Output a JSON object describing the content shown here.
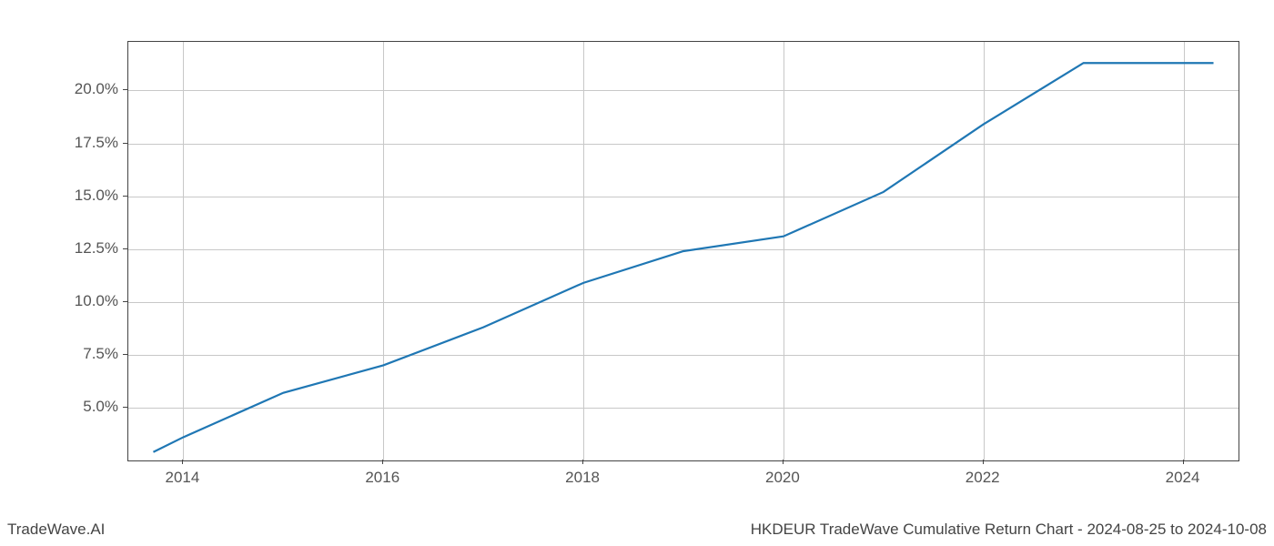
{
  "chart": {
    "type": "line",
    "line_color": "#1f77b4",
    "line_width": 2.2,
    "background_color": "#ffffff",
    "grid_color": "#c8c8c8",
    "border_color": "#444444",
    "tick_label_color": "#555555",
    "tick_label_fontsize": 17,
    "footer_fontsize": 17,
    "footer_color": "#444444",
    "x_values": [
      2013.7,
      2014,
      2015,
      2016,
      2017,
      2018,
      2019,
      2020,
      2021,
      2022,
      2023,
      2024,
      2024.3
    ],
    "y_values": [
      2.9,
      3.6,
      5.7,
      7.0,
      8.8,
      10.9,
      12.4,
      13.1,
      15.2,
      18.4,
      21.3,
      21.3,
      21.3
    ],
    "xlim": [
      2013.45,
      2024.55
    ],
    "ylim": [
      2.5,
      22.3
    ],
    "xticks": [
      2014,
      2016,
      2018,
      2020,
      2022,
      2024
    ],
    "xtick_labels": [
      "2014",
      "2016",
      "2018",
      "2020",
      "2022",
      "2024"
    ],
    "yticks": [
      5.0,
      7.5,
      10.0,
      12.5,
      15.0,
      17.5,
      20.0
    ],
    "ytick_labels": [
      "5.0%",
      "7.5%",
      "10.0%",
      "12.5%",
      "15.0%",
      "17.5%",
      "20.0%"
    ]
  },
  "footer": {
    "left": "TradeWave.AI",
    "right": "HKDEUR TradeWave Cumulative Return Chart - 2024-08-25 to 2024-10-08"
  }
}
